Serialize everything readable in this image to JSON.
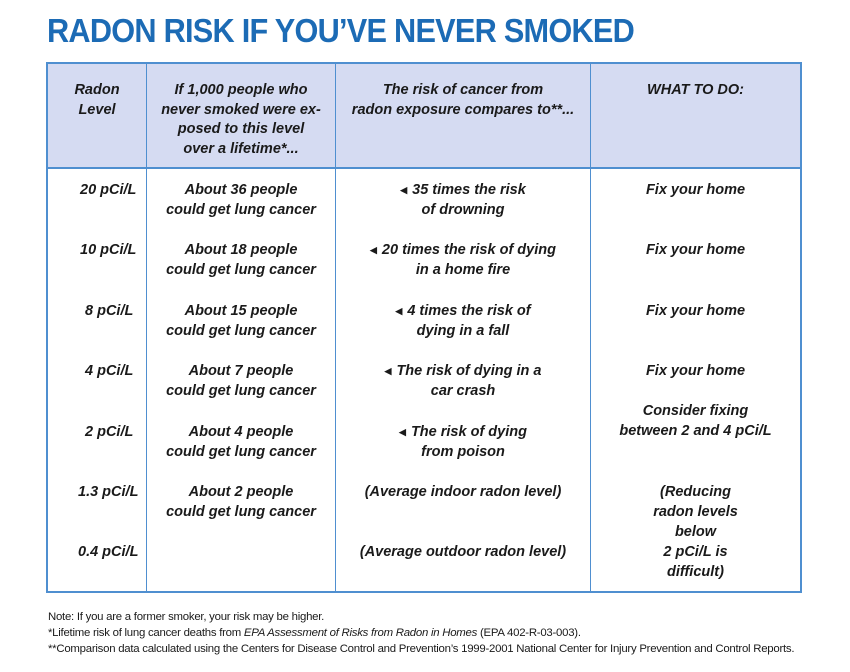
{
  "title": "RADON RISK IF YOU’VE NEVER SMOKED",
  "headers": {
    "level": "Radon\nLevel",
    "people": "If 1,000 people who\nnever smoked were ex-\nposed to this level\nover a lifetime*...",
    "compare": "The risk of cancer from\nradon exposure compares to**...",
    "action": "WHAT TO DO:"
  },
  "rows": [
    {
      "level": "20 pCi/L",
      "people": "About 36 people\ncould get lung cancer",
      "compare": "35 times the risk\nof drowning",
      "action": "Fix your home"
    },
    {
      "level": "10 pCi/L",
      "people": "About 18 people\ncould get lung cancer",
      "compare": "20 times the risk of dying\nin a home fire",
      "action": "Fix your home"
    },
    {
      "level": "8 pCi/L",
      "people": "About 15 people\ncould get lung cancer",
      "compare": "4 times the risk of\ndying in a fall",
      "action": "Fix your home"
    },
    {
      "level": "4 pCi/L",
      "people": "About 7 people\ncould get lung cancer",
      "compare": "The risk of dying in a\ncar crash",
      "action": "Fix your home"
    },
    {
      "level": "2 pCi/L",
      "people": "About 4 people\ncould get lung cancer",
      "compare": "The risk of dying\nfrom poison",
      "action": "Consider  fixing\nbetween 2 and 4 pCi/L"
    },
    {
      "level": "1.3 pCi/L",
      "people": "About 2 people\ncould get lung cancer",
      "compare": "(Average indoor radon level)",
      "action": ""
    },
    {
      "level": "0.4 pCi/L",
      "people": "",
      "compare": "(Average outdoor radon level)",
      "action": ""
    }
  ],
  "action_note": "(Reducing\nradon levels\nbelow\n2 pCi/L is\ndifficult)",
  "notes": {
    "note1": "Note: If you are a former smoker, your risk may be higher.",
    "note2_prefix": "*Lifetime risk of lung cancer deaths from ",
    "note2_italic": "EPA Assessment of Risks from Radon in Homes",
    "note2_suffix": " (EPA 402-R-03-003).",
    "note3": "**Comparison data calculated using the Centers for Disease Control and Prevention’s 1999-2001 National Center for Injury Prevention and Control Reports."
  },
  "icons": {
    "compare_marker": "left-triangle-icon"
  },
  "colors": {
    "title": "#1c6bb5",
    "border": "#4f8fd0",
    "header_bg": "#d5dbf2"
  }
}
